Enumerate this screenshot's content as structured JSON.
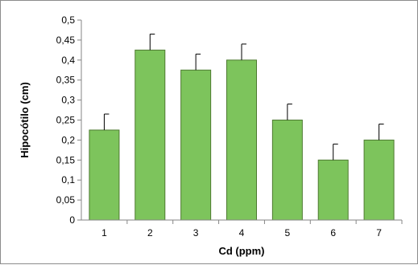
{
  "chart_data": {
    "type": "bar",
    "title": "",
    "xlabel": "Cd (ppm)",
    "ylabel": "Hipocótilo (cm)",
    "categories": [
      "1",
      "2",
      "3",
      "4",
      "5",
      "6",
      "7"
    ],
    "values": [
      0.225,
      0.425,
      0.375,
      0.4,
      0.25,
      0.15,
      0.2
    ],
    "error_bars": [
      0.04,
      0.04,
      0.04,
      0.04,
      0.04,
      0.04,
      0.04
    ],
    "ylim": [
      0,
      0.5
    ],
    "yticks": [
      "0",
      "0,05",
      "0,1",
      "0,15",
      "0,2",
      "0,25",
      "0,3",
      "0,35",
      "0,4",
      "0,45",
      "0,5"
    ],
    "grid": false,
    "legend": "none",
    "colors": {
      "bar_fill": "#7dc45c",
      "bar_stroke": "#4d7a30",
      "axis": "#868686"
    }
  }
}
